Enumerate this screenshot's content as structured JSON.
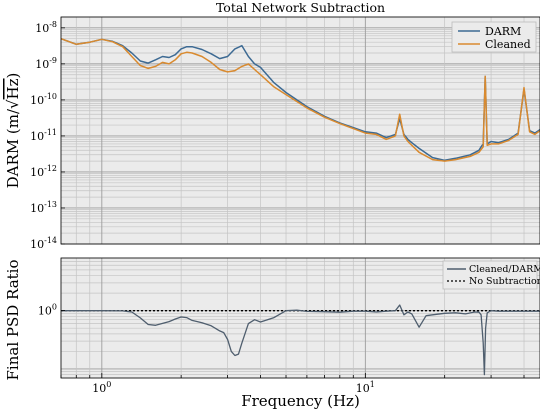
{
  "chart_data": [
    {
      "type": "line",
      "title": "Total Network Subtraction",
      "ylabel_main": "DARM (m/",
      "ylabel_radical": "Hz",
      "ylabel_close": ")",
      "xscale": "log",
      "yscale": "log",
      "xlim": [
        0.7,
        46
      ],
      "ylim": [
        1e-14,
        2e-08
      ],
      "grid": true,
      "legend": "top-right",
      "yticks": [
        {
          "value": 1e-08,
          "base": "10",
          "exp": "-8"
        },
        {
          "value": 1e-09,
          "base": "10",
          "exp": "-9"
        },
        {
          "value": 1e-10,
          "base": "10",
          "exp": "-10"
        },
        {
          "value": 1e-11,
          "base": "10",
          "exp": "-11"
        },
        {
          "value": 1e-12,
          "base": "10",
          "exp": "-12"
        },
        {
          "value": 1e-13,
          "base": "10",
          "exp": "-13"
        },
        {
          "value": 1e-14,
          "base": "10",
          "exp": "-14"
        }
      ],
      "series": [
        {
          "name": "DARM",
          "color": "#3d6a93",
          "x": [
            0.7,
            0.8,
            0.9,
            1.0,
            1.1,
            1.2,
            1.3,
            1.4,
            1.5,
            1.6,
            1.7,
            1.8,
            1.9,
            2.0,
            2.1,
            2.2,
            2.4,
            2.6,
            2.8,
            3.0,
            3.2,
            3.4,
            3.6,
            3.8,
            4.0,
            4.5,
            5.0,
            6.0,
            7.0,
            8.0,
            9.0,
            10.0,
            11.0,
            12.0,
            13.0,
            13.5,
            14.0,
            14.5,
            15.0,
            16.0,
            18.0,
            20.0,
            22.0,
            25.0,
            27.0,
            27.5,
            28.0,
            28.5,
            29.0,
            30.0,
            32.0,
            35.0,
            38.0,
            40.0,
            42.0,
            44.0,
            46.0
          ],
          "y": [
            5e-09,
            3.5e-09,
            4e-09,
            4.8e-09,
            4.2e-09,
            3.2e-09,
            2e-09,
            1.2e-09,
            1.05e-09,
            1.3e-09,
            1.6e-09,
            1.5e-09,
            1.8e-09,
            2.6e-09,
            3e-09,
            3e-09,
            2.5e-09,
            1.9e-09,
            1.4e-09,
            1.6e-09,
            2.6e-09,
            3.2e-09,
            1.6e-09,
            1e-09,
            8e-10,
            3e-10,
            1.6e-10,
            6.5e-11,
            3.5e-11,
            2.3e-11,
            1.7e-11,
            1.3e-11,
            1.2e-11,
            9e-12,
            1.1e-11,
            3e-11,
            1.1e-11,
            8e-12,
            6.5e-12,
            4.5e-12,
            2.5e-12,
            2.1e-12,
            2.4e-12,
            3e-12,
            4e-12,
            5e-12,
            6e-12,
            4.5e-10,
            6e-12,
            7e-12,
            6.5e-12,
            8e-12,
            1.2e-11,
            2e-10,
            1.4e-11,
            1.2e-11,
            1.5e-11
          ]
        },
        {
          "name": "Cleaned",
          "color": "#d98a2f",
          "x": [
            0.7,
            0.8,
            0.9,
            1.0,
            1.1,
            1.2,
            1.3,
            1.4,
            1.5,
            1.6,
            1.7,
            1.8,
            1.9,
            2.0,
            2.1,
            2.2,
            2.4,
            2.6,
            2.8,
            3.0,
            3.2,
            3.4,
            3.6,
            3.8,
            4.0,
            4.5,
            5.0,
            6.0,
            7.0,
            8.0,
            9.0,
            10.0,
            11.0,
            12.0,
            13.0,
            13.5,
            14.0,
            14.5,
            15.0,
            16.0,
            18.0,
            20.0,
            22.0,
            25.0,
            27.0,
            27.5,
            28.0,
            28.5,
            29.0,
            30.0,
            32.0,
            35.0,
            38.0,
            40.0,
            42.0,
            44.0,
            46.0
          ],
          "y": [
            5e-09,
            3.5e-09,
            4e-09,
            4.8e-09,
            4.1e-09,
            3e-09,
            1.6e-09,
            9e-10,
            7.5e-10,
            8.5e-10,
            1.1e-09,
            1e-09,
            1.3e-09,
            1.9e-09,
            2.1e-09,
            2e-09,
            1.6e-09,
            1.1e-09,
            7e-10,
            6e-10,
            6.5e-10,
            8.5e-10,
            1e-09,
            7e-10,
            5e-10,
            2.3e-10,
            1.4e-10,
            6e-11,
            3.3e-11,
            2.2e-11,
            1.6e-11,
            1.2e-11,
            1.1e-11,
            8e-12,
            1e-11,
            4e-11,
            1e-11,
            7e-12,
            5.5e-12,
            3.5e-12,
            2.2e-12,
            2e-12,
            2.2e-12,
            2.7e-12,
            3.5e-12,
            4.2e-12,
            5e-12,
            4.5e-10,
            5.5e-12,
            6e-12,
            6e-12,
            7.5e-12,
            1.1e-11,
            2.2e-10,
            1.3e-11,
            1.1e-11,
            1.4e-11
          ]
        }
      ]
    },
    {
      "type": "line",
      "ylabel": "Final PSD Ratio",
      "xlabel": "Frequency (Hz)",
      "xscale": "log",
      "yscale": "log",
      "xlim": [
        0.7,
        46
      ],
      "ylim": [
        0.07,
        8
      ],
      "grid": true,
      "legend": "top-right",
      "yticks": [
        {
          "value": 1,
          "base": "10",
          "exp": "0"
        }
      ],
      "xticks": [
        {
          "value": 1,
          "base": "10",
          "exp": "0"
        },
        {
          "value": 10,
          "base": "10",
          "exp": "1"
        }
      ],
      "series": [
        {
          "name": "Cleaned/DARM",
          "color": "#4f5e6e",
          "x": [
            0.7,
            1.0,
            1.2,
            1.3,
            1.4,
            1.5,
            1.6,
            1.8,
            1.9,
            2.0,
            2.1,
            2.2,
            2.4,
            2.6,
            2.8,
            2.9,
            3.0,
            3.1,
            3.2,
            3.3,
            3.4,
            3.6,
            3.8,
            4.0,
            4.5,
            5.0,
            5.5,
            6.0,
            7.0,
            8.0,
            9.0,
            10.0,
            11.0,
            12.0,
            13.0,
            13.5,
            14.0,
            14.5,
            15.0,
            16.0,
            17.0,
            18.0,
            20.0,
            22.0,
            24.0,
            26.0,
            27.0,
            27.5,
            28.0,
            28.3,
            28.6,
            29.0,
            30.0,
            32.0,
            35.0,
            40.0,
            46.0
          ],
          "y": [
            1.0,
            1.0,
            0.99,
            0.95,
            0.75,
            0.58,
            0.56,
            0.65,
            0.72,
            0.78,
            0.76,
            0.68,
            0.62,
            0.55,
            0.45,
            0.42,
            0.32,
            0.2,
            0.17,
            0.18,
            0.28,
            0.6,
            0.7,
            0.64,
            0.76,
            1.0,
            1.02,
            0.97,
            0.96,
            0.94,
            0.98,
            0.98,
            0.95,
            0.98,
            1.0,
            1.25,
            0.85,
            0.95,
            0.88,
            0.52,
            0.82,
            0.85,
            0.9,
            0.92,
            0.88,
            0.95,
            0.94,
            0.85,
            0.28,
            0.08,
            0.5,
            0.92,
            1.0,
            0.98,
            0.98,
            0.98,
            0.98
          ]
        },
        {
          "name": "No Subtraction",
          "color": "#000000",
          "x": [
            0.7,
            46
          ],
          "y": [
            1,
            1
          ]
        }
      ]
    }
  ]
}
